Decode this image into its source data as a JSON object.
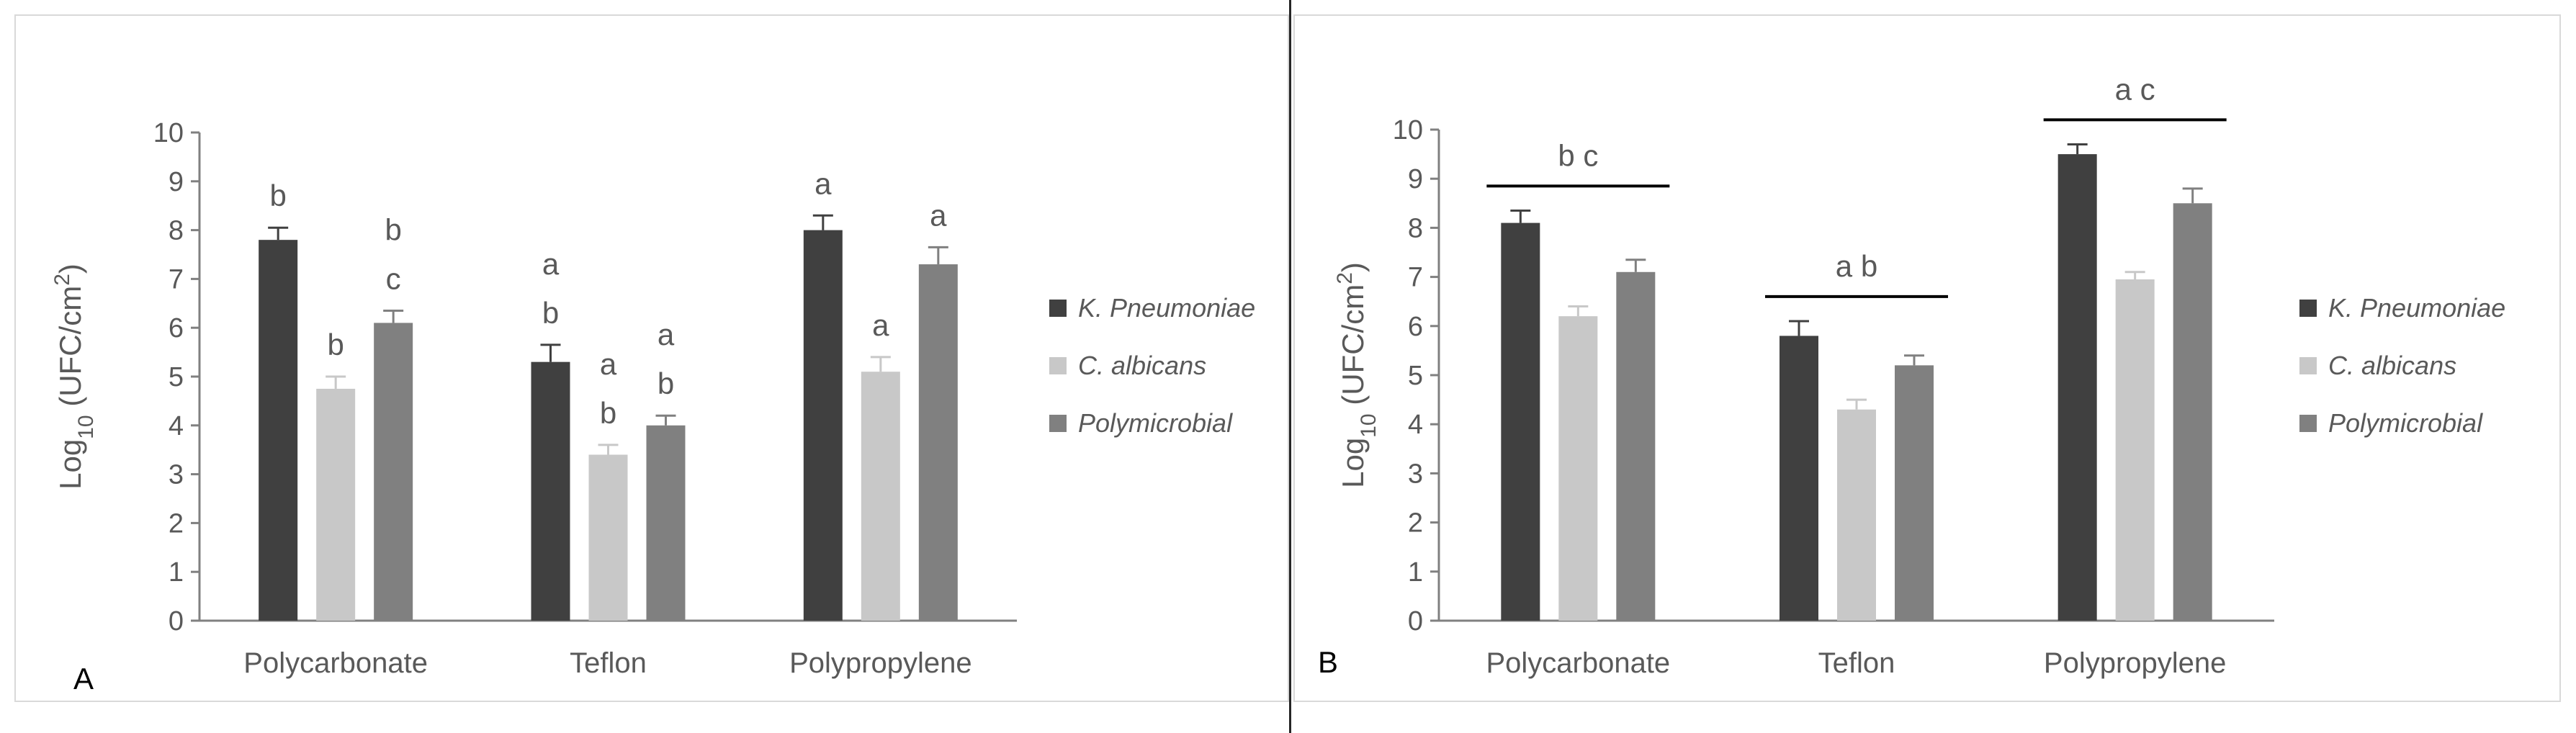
{
  "chart_data": [
    {
      "type": "bar",
      "panel_label": "A",
      "categories": [
        "Polycarbonate",
        "Teflon",
        "Polypropylene"
      ],
      "series": [
        {
          "name": "K. Pneumoniae",
          "color": "#404040",
          "values": [
            7.8,
            5.3,
            8.0
          ],
          "errors": [
            0.25,
            0.35,
            0.3
          ]
        },
        {
          "name": "C. albicans",
          "color": "#c8c8c8",
          "values": [
            4.75,
            3.4,
            5.1
          ],
          "errors": [
            0.25,
            0.2,
            0.3
          ]
        },
        {
          "name": "Polymicrobial",
          "color": "#808080",
          "values": [
            6.1,
            4.0,
            7.3
          ],
          "errors": [
            0.25,
            0.2,
            0.35
          ]
        }
      ],
      "significance_letters": [
        [
          [
            "b"
          ],
          [
            "b"
          ],
          [
            "b",
            "c"
          ]
        ],
        [
          [
            "a",
            "b"
          ],
          [
            "a",
            "b"
          ],
          [
            "a",
            "b"
          ]
        ],
        [
          [
            "a"
          ],
          [
            "a"
          ],
          [
            "a"
          ]
        ]
      ],
      "group_annotations": [],
      "ylabel_main": "Log",
      "ylabel_sub": "10",
      "ylabel_rest": "(UFC/cm",
      "ylabel_sup": "2",
      "ylabel_close": ")",
      "ylim": [
        0,
        10
      ],
      "yticks": [
        "0",
        "1",
        "2",
        "3",
        "4",
        "5",
        "6",
        "7",
        "8",
        "9",
        "10"
      ],
      "legend_position": "right"
    },
    {
      "type": "bar",
      "panel_label": "B",
      "categories": [
        "Polycarbonate",
        "Teflon",
        "Polypropylene"
      ],
      "series": [
        {
          "name": "K. Pneumoniae",
          "color": "#404040",
          "values": [
            8.1,
            5.8,
            9.5
          ],
          "errors": [
            0.25,
            0.3,
            0.2
          ]
        },
        {
          "name": "C. albicans",
          "color": "#c8c8c8",
          "values": [
            6.2,
            4.3,
            6.95
          ],
          "errors": [
            0.2,
            0.2,
            0.15
          ]
        },
        {
          "name": "Polymicrobial",
          "color": "#808080",
          "values": [
            7.1,
            5.2,
            8.5
          ],
          "errors": [
            0.25,
            0.2,
            0.3
          ]
        }
      ],
      "significance_letters": [],
      "group_annotations": [
        "b c",
        "a b",
        "a c"
      ],
      "group_annotation_levels": [
        8.85,
        6.6,
        10.2
      ],
      "ylabel_main": "Log",
      "ylabel_sub": "10",
      "ylabel_rest": "(UFC/cm",
      "ylabel_sup": "2",
      "ylabel_close": ")",
      "ylim": [
        0,
        10
      ],
      "yticks": [
        "0",
        "1",
        "2",
        "3",
        "4",
        "5",
        "6",
        "7",
        "8",
        "9",
        "10"
      ],
      "legend_position": "right"
    }
  ]
}
